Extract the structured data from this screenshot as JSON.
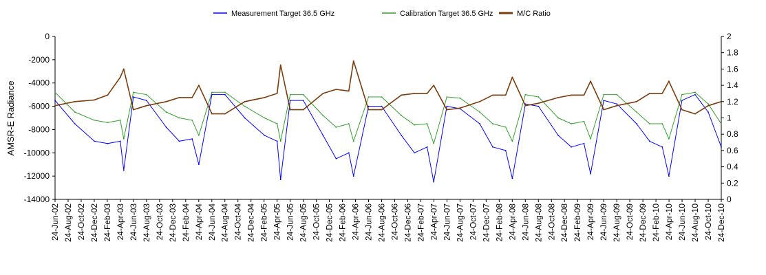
{
  "chart_data": {
    "type": "line",
    "title": "",
    "ylabel": "AMSR-E Radiance",
    "y2label": "",
    "ylim": [
      -14000,
      0
    ],
    "y2lim": [
      0,
      2
    ],
    "yticks": [
      0,
      -2000,
      -4000,
      -6000,
      -8000,
      -10000,
      -12000,
      -14000
    ],
    "yticks_labels": [
      "0",
      "-2000",
      "-4000",
      "-6000",
      "-8000",
      "-10000",
      "-12000",
      "-14000"
    ],
    "y2ticks_labels": [
      "2",
      "1.8",
      "1.6",
      "1.4",
      "1.2",
      "1",
      "0.8",
      "0.6",
      "0.4",
      "0.2",
      "0"
    ],
    "xlim": [
      "2002-06-24",
      "2010-12-24"
    ],
    "x_tick_labels": [
      "24-Jun-02",
      "24-Aug-02",
      "24-Oct-02",
      "24-Dec-02",
      "24-Feb-03",
      "24-Apr-03",
      "24-Jun-03",
      "24-Aug-03",
      "24-Oct-03",
      "24-Dec-03",
      "24-Feb-04",
      "24-Apr-04",
      "24-Jun-04",
      "24-Aug-04",
      "24-Oct-04",
      "24-Dec-04",
      "24-Feb-05",
      "24-Apr-05",
      "24-Jun-05",
      "24-Aug-05",
      "24-Oct-05",
      "24-Dec-05",
      "24-Feb-06",
      "24-Apr-06",
      "24-Jun-06",
      "24-Aug-06",
      "24-Oct-06",
      "24-Dec-06",
      "24-Feb-07",
      "24-Apr-07",
      "24-Jun-07",
      "24-Aug-07",
      "24-Oct-07",
      "24-Dec-07",
      "24-Feb-08",
      "24-Apr-08",
      "24-Jun-08",
      "24-Aug-08",
      "24-Oct-08",
      "24-Dec-08",
      "24-Feb-09",
      "24-Apr-09",
      "24-Jun-09",
      "24-Aug-09",
      "24-Oct-09",
      "24-Dec-09",
      "24-Feb-10",
      "24-Apr-10",
      "24-Jun-10",
      "24-Aug-10",
      "24-Oct-10",
      "24-Dec-10"
    ],
    "legend_position": "top",
    "grid": false,
    "series": [
      {
        "name": "Measurement Target 36.5 GHz",
        "axis": "left",
        "color": "#0000ff",
        "x": [
          "2002-06-24",
          "2002-09-24",
          "2002-12-24",
          "2003-02-24",
          "2003-04-24",
          "2003-05-10",
          "2003-06-24",
          "2003-08-24",
          "2003-11-24",
          "2004-01-24",
          "2004-03-24",
          "2004-04-24",
          "2004-06-24",
          "2004-08-24",
          "2004-11-24",
          "2005-02-24",
          "2005-04-24",
          "2005-05-10",
          "2005-06-24",
          "2005-08-24",
          "2005-11-24",
          "2006-01-24",
          "2006-03-24",
          "2006-04-15",
          "2006-06-24",
          "2006-08-24",
          "2006-11-24",
          "2007-01-24",
          "2007-03-24",
          "2007-04-24",
          "2007-06-24",
          "2007-08-24",
          "2007-11-24",
          "2008-01-24",
          "2008-03-24",
          "2008-04-24",
          "2008-06-24",
          "2008-08-24",
          "2008-11-24",
          "2009-01-24",
          "2009-03-24",
          "2009-04-24",
          "2009-06-24",
          "2009-08-24",
          "2009-11-24",
          "2010-01-24",
          "2010-03-24",
          "2010-04-24",
          "2010-06-24",
          "2010-08-24",
          "2010-10-24",
          "2010-12-24"
        ],
        "y": [
          -5500,
          -7500,
          -9000,
          -9200,
          -9000,
          -11500,
          -5200,
          -5500,
          -7800,
          -9000,
          -8800,
          -11000,
          -5000,
          -5000,
          -7000,
          -8500,
          -9000,
          -12300,
          -5500,
          -5500,
          -8500,
          -10500,
          -10000,
          -12000,
          -6000,
          -6000,
          -8500,
          -10000,
          -9500,
          -12500,
          -6000,
          -6200,
          -7500,
          -9500,
          -9800,
          -12200,
          -5800,
          -6000,
          -8500,
          -9500,
          -9200,
          -11800,
          -5500,
          -5800,
          -7500,
          -9000,
          -9500,
          -12000,
          -5500,
          -5000,
          -6500,
          -9500
        ]
      },
      {
        "name": "Calibration Target 36.5 GHz",
        "axis": "left",
        "color": "#33a02c",
        "x": [
          "2002-06-24",
          "2002-09-24",
          "2002-12-24",
          "2003-02-24",
          "2003-04-24",
          "2003-05-10",
          "2003-06-24",
          "2003-08-24",
          "2003-11-24",
          "2004-01-24",
          "2004-03-24",
          "2004-04-24",
          "2004-06-24",
          "2004-08-24",
          "2004-11-24",
          "2005-02-24",
          "2005-04-24",
          "2005-05-10",
          "2005-06-24",
          "2005-08-24",
          "2005-11-24",
          "2006-01-24",
          "2006-03-24",
          "2006-04-15",
          "2006-06-24",
          "2006-08-24",
          "2006-11-24",
          "2007-01-24",
          "2007-03-24",
          "2007-04-24",
          "2007-06-24",
          "2007-08-24",
          "2007-11-24",
          "2008-01-24",
          "2008-03-24",
          "2008-04-24",
          "2008-06-24",
          "2008-08-24",
          "2008-11-24",
          "2009-01-24",
          "2009-03-24",
          "2009-04-24",
          "2009-06-24",
          "2009-08-24",
          "2009-11-24",
          "2010-01-24",
          "2010-03-24",
          "2010-04-24",
          "2010-06-24",
          "2010-08-24",
          "2010-10-24",
          "2010-12-24"
        ],
        "y": [
          -4800,
          -6500,
          -7200,
          -7400,
          -7200,
          -8800,
          -4800,
          -5000,
          -6500,
          -7000,
          -7200,
          -8500,
          -4800,
          -4800,
          -6000,
          -7000,
          -7500,
          -9000,
          -5000,
          -5000,
          -6800,
          -7800,
          -7500,
          -9000,
          -5200,
          -5200,
          -6800,
          -7600,
          -7500,
          -9200,
          -5200,
          -5300,
          -6500,
          -7500,
          -7800,
          -9000,
          -5000,
          -5200,
          -7000,
          -7500,
          -7300,
          -8800,
          -5000,
          -5000,
          -6500,
          -7500,
          -7500,
          -8800,
          -5000,
          -4800,
          -5800,
          -7500
        ]
      },
      {
        "name": "M/C Ratio",
        "axis": "right",
        "color": "#7b3c0c",
        "x": [
          "2002-06-24",
          "2002-09-24",
          "2002-12-24",
          "2003-02-24",
          "2003-04-24",
          "2003-05-10",
          "2003-06-24",
          "2003-08-24",
          "2003-11-24",
          "2004-01-24",
          "2004-03-24",
          "2004-04-24",
          "2004-06-24",
          "2004-08-24",
          "2004-11-24",
          "2005-02-24",
          "2005-04-24",
          "2005-05-10",
          "2005-06-24",
          "2005-08-24",
          "2005-11-24",
          "2006-01-24",
          "2006-03-24",
          "2006-04-15",
          "2006-06-24",
          "2006-08-24",
          "2006-11-24",
          "2007-01-24",
          "2007-03-24",
          "2007-04-24",
          "2007-06-24",
          "2007-08-24",
          "2007-11-24",
          "2008-01-24",
          "2008-03-24",
          "2008-04-24",
          "2008-06-24",
          "2008-08-24",
          "2008-11-24",
          "2009-01-24",
          "2009-03-24",
          "2009-04-24",
          "2009-06-24",
          "2009-08-24",
          "2009-11-24",
          "2010-01-24",
          "2010-03-24",
          "2010-04-24",
          "2010-06-24",
          "2010-08-24",
          "2010-10-24",
          "2010-12-24"
        ],
        "y": [
          1.15,
          1.2,
          1.22,
          1.28,
          1.5,
          1.6,
          1.1,
          1.15,
          1.2,
          1.25,
          1.25,
          1.4,
          1.05,
          1.05,
          1.2,
          1.25,
          1.3,
          1.65,
          1.1,
          1.1,
          1.3,
          1.35,
          1.33,
          1.7,
          1.1,
          1.1,
          1.28,
          1.3,
          1.3,
          1.4,
          1.1,
          1.12,
          1.2,
          1.28,
          1.28,
          1.5,
          1.15,
          1.18,
          1.25,
          1.28,
          1.28,
          1.45,
          1.1,
          1.15,
          1.2,
          1.3,
          1.3,
          1.45,
          1.1,
          1.05,
          1.15,
          1.2
        ]
      }
    ]
  }
}
